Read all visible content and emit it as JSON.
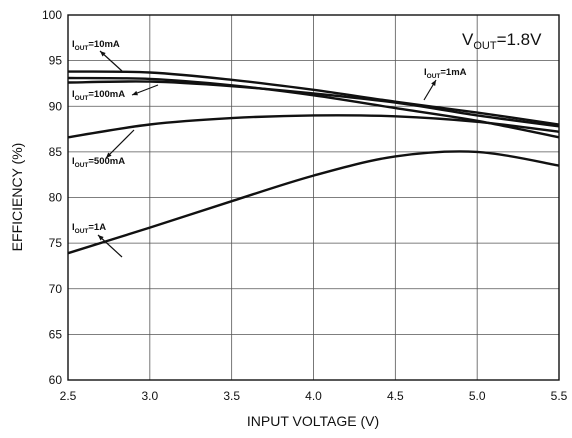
{
  "chart_data": {
    "type": "line",
    "title": "",
    "xlabel": "INPUT VOLTAGE (V)",
    "ylabel": "EFFICIENCY (%)",
    "xlim": [
      2.5,
      5.5
    ],
    "ylim": [
      60,
      100
    ],
    "xticks": [
      2.5,
      3.0,
      3.5,
      4.0,
      4.5,
      5.0,
      5.5
    ],
    "xtick_labels": [
      "2.5",
      "3.0",
      "3.5",
      "4.0",
      "4.5",
      "5.0",
      "5.5"
    ],
    "yticks": [
      60,
      65,
      70,
      75,
      80,
      85,
      90,
      95,
      100
    ],
    "ytick_labels": [
      "60",
      "65",
      "70",
      "75",
      "80",
      "85",
      "90",
      "95",
      "100"
    ],
    "grid": true,
    "condition": {
      "main": "V",
      "sub": "OUT",
      "rest": "=1.8V"
    },
    "series": [
      {
        "name": "IOUT=10mA",
        "label_main": "I",
        "label_sub": "OUT",
        "label_rest": "=10mA",
        "x": [
          2.5,
          3.0,
          3.5,
          4.0,
          4.5,
          5.0,
          5.5
        ],
        "values": [
          93.8,
          93.7,
          92.9,
          91.8,
          90.5,
          89.3,
          88.0
        ]
      },
      {
        "name": "IOUT=1mA",
        "label_main": "I",
        "label_sub": "OUT",
        "label_rest": "=1mA",
        "x": [
          2.5,
          3.0,
          3.5,
          4.0,
          4.5,
          5.0,
          5.5
        ],
        "values": [
          92.6,
          92.7,
          92.2,
          91.4,
          90.4,
          89.0,
          87.8
        ]
      },
      {
        "name": "IOUT=100mA",
        "label_main": "I",
        "label_sub": "OUT",
        "label_rest": "=100mA",
        "x": [
          2.5,
          3.0,
          3.5,
          4.0,
          4.5,
          5.0,
          5.5
        ],
        "values": [
          93.1,
          93.0,
          92.3,
          91.2,
          89.8,
          88.4,
          86.6
        ]
      },
      {
        "name": "IOUT=500mA",
        "label_main": "I",
        "label_sub": "OUT",
        "label_rest": "=500mA",
        "x": [
          2.5,
          3.0,
          3.5,
          4.0,
          4.5,
          5.0,
          5.5
        ],
        "values": [
          86.6,
          88.0,
          88.7,
          89.0,
          88.9,
          88.3,
          87.2
        ]
      },
      {
        "name": "IOUT=1A",
        "label_main": "I",
        "label_sub": "OUT",
        "label_rest": "=1A",
        "x": [
          2.5,
          3.0,
          3.5,
          4.0,
          4.5,
          5.0,
          5.5
        ],
        "values": [
          73.9,
          76.7,
          79.6,
          82.4,
          84.5,
          85.0,
          83.5
        ]
      }
    ]
  }
}
